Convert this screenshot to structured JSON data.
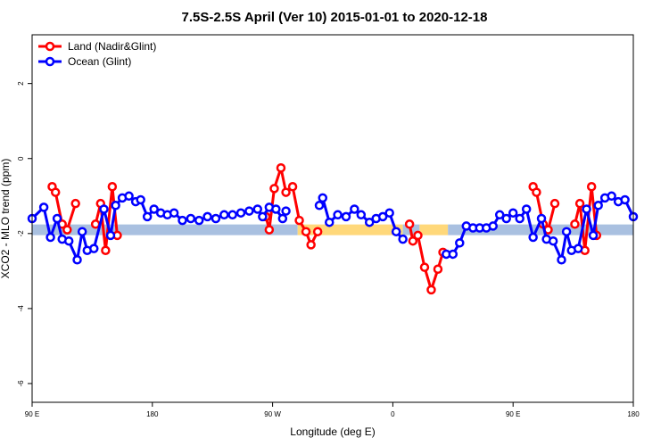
{
  "chart_data": {
    "type": "line",
    "title": "7.5S-2.5S April (Ver 10)   2015-01-01 to 2020-12-18",
    "xlabel": "Longitude (deg E)",
    "ylabel": "XCO2 - MLO trend (ppm)",
    "xlim": [
      90,
      450
    ],
    "ylim": [
      -6.5,
      3.3
    ],
    "x_ticks": [
      {
        "value": 90,
        "label": "90 E"
      },
      {
        "value": 162,
        "label": "180"
      },
      {
        "value": 234,
        "label": "90 W"
      },
      {
        "value": 306,
        "label": "0"
      },
      {
        "value": 378,
        "label": "90 E"
      },
      {
        "value": 450,
        "label": "180"
      }
    ],
    "y_ticks": [
      {
        "value": 2,
        "label": "2"
      },
      {
        "value": 0,
        "label": "0"
      },
      {
        "value": -2,
        "label": "-2"
      },
      {
        "value": -4,
        "label": "-4"
      },
      {
        "value": -6,
        "label": "-6"
      }
    ],
    "legend": {
      "position": "top-left"
    },
    "series": [
      {
        "name": "Land (Nadir&Glint)",
        "color": "#ff0000",
        "points": [
          [
            102.0,
            -0.75
          ],
          [
            104.0,
            -0.9
          ],
          [
            108.0,
            -1.75
          ],
          [
            111.0,
            -1.9
          ],
          [
            116.0,
            -1.2
          ],
          null,
          [
            128.0,
            -1.75
          ],
          [
            131.0,
            -1.2
          ],
          [
            134.0,
            -2.45
          ],
          [
            138.0,
            -0.75
          ],
          [
            141.0,
            -2.05
          ],
          null,
          [
            230.0,
            -1.55
          ],
          [
            232.0,
            -1.9
          ],
          [
            235.0,
            -0.8
          ],
          [
            239.0,
            -0.25
          ],
          [
            242.0,
            -0.9
          ],
          [
            246.0,
            -0.75
          ],
          [
            250.0,
            -1.65
          ],
          [
            254.0,
            -1.95
          ],
          [
            257.0,
            -2.3
          ],
          [
            261.0,
            -1.95
          ],
          null,
          [
            316.0,
            -1.75
          ],
          [
            318.0,
            -2.2
          ],
          [
            321.0,
            -2.05
          ],
          [
            325.0,
            -2.9
          ],
          [
            329.0,
            -3.5
          ],
          [
            333.0,
            -2.95
          ],
          [
            336.0,
            -2.5
          ],
          null,
          [
            390.0,
            -0.75
          ],
          [
            392.0,
            -0.9
          ],
          [
            396.0,
            -1.75
          ],
          [
            399.0,
            -1.9
          ],
          [
            403.0,
            -1.2
          ],
          null,
          [
            415.0,
            -1.75
          ],
          [
            418.0,
            -1.2
          ],
          [
            421.0,
            -2.45
          ],
          [
            425.0,
            -0.75
          ],
          [
            428.0,
            -2.05
          ]
        ]
      },
      {
        "name": "Ocean (Glint)",
        "color": "#0000ff",
        "points": [
          [
            90.0,
            -1.6
          ],
          [
            97.0,
            -1.3
          ],
          [
            101.0,
            -2.1
          ],
          [
            105.0,
            -1.6
          ],
          [
            108.0,
            -2.15
          ],
          [
            112.0,
            -2.2
          ],
          [
            117.0,
            -2.7
          ],
          [
            120.0,
            -1.95
          ],
          [
            123.0,
            -2.45
          ],
          [
            127.0,
            -2.4
          ],
          [
            133.0,
            -1.35
          ],
          [
            137.0,
            -2.05
          ],
          [
            140.0,
            -1.25
          ],
          [
            144.0,
            -1.05
          ],
          [
            148.0,
            -1.0
          ],
          [
            152.0,
            -1.15
          ],
          [
            155.0,
            -1.1
          ],
          [
            159.0,
            -1.55
          ],
          [
            163.0,
            -1.35
          ],
          [
            167.0,
            -1.45
          ],
          [
            171.0,
            -1.5
          ],
          [
            175.0,
            -1.45
          ],
          [
            180.0,
            -1.65
          ],
          [
            185.0,
            -1.6
          ],
          [
            190.0,
            -1.65
          ],
          [
            195.0,
            -1.55
          ],
          [
            200.0,
            -1.6
          ],
          [
            205.0,
            -1.5
          ],
          [
            210.0,
            -1.5
          ],
          [
            215.0,
            -1.45
          ],
          [
            220.0,
            -1.4
          ],
          [
            225.0,
            -1.35
          ],
          [
            228.0,
            -1.55
          ],
          [
            232.0,
            -1.3
          ],
          [
            236.0,
            -1.35
          ],
          [
            240.0,
            -1.6
          ],
          null,
          [
            242.0,
            -1.4
          ],
          null,
          [
            262.0,
            -1.25
          ],
          [
            264.0,
            -1.05
          ],
          [
            268.0,
            -1.7
          ],
          [
            273.0,
            -1.5
          ],
          [
            278.0,
            -1.55
          ],
          [
            283.0,
            -1.35
          ],
          [
            287.0,
            -1.5
          ],
          [
            292.0,
            -1.7
          ],
          [
            296.0,
            -1.6
          ],
          [
            300.0,
            -1.55
          ],
          [
            304.0,
            -1.45
          ],
          [
            308.0,
            -1.95
          ],
          [
            312.0,
            -2.15
          ],
          null,
          [
            338.0,
            -2.55
          ],
          [
            342.0,
            -2.55
          ],
          [
            346.0,
            -2.25
          ],
          [
            350.0,
            -1.8
          ],
          [
            354.0,
            -1.85
          ],
          [
            358.0,
            -1.85
          ],
          [
            362.0,
            -1.85
          ],
          [
            366.0,
            -1.8
          ],
          [
            370.0,
            -1.5
          ],
          [
            374.0,
            -1.6
          ],
          [
            378.0,
            -1.45
          ],
          [
            382.0,
            -1.6
          ],
          [
            386.0,
            -1.35
          ],
          [
            390.0,
            -2.1
          ],
          [
            395.0,
            -1.6
          ],
          [
            398.0,
            -2.15
          ],
          [
            402.0,
            -2.2
          ],
          [
            407.0,
            -2.7
          ],
          [
            410.0,
            -1.95
          ],
          [
            413.0,
            -2.45
          ],
          [
            417.0,
            -2.4
          ],
          [
            422.0,
            -1.35
          ],
          [
            426.0,
            -2.05
          ],
          [
            429.0,
            -1.25
          ],
          [
            433.0,
            -1.05
          ],
          [
            437.0,
            -1.0
          ],
          [
            441.0,
            -1.15
          ],
          [
            445.0,
            -1.1
          ],
          [
            450.0,
            -1.55
          ]
        ]
      }
    ],
    "reference_band": {
      "y": -1.9,
      "segments": [
        {
          "x": [
            90,
            249
          ],
          "color": "#a9c0e0"
        },
        {
          "x": [
            249,
            312
          ],
          "color": "#ffd87a"
        },
        {
          "x": [
            312,
            322
          ],
          "color": "#a9c0e0"
        },
        {
          "x": [
            322,
            339
          ],
          "color": "#ffd87a"
        },
        {
          "x": [
            339,
            450
          ],
          "color": "#a9c0e0"
        }
      ]
    }
  }
}
